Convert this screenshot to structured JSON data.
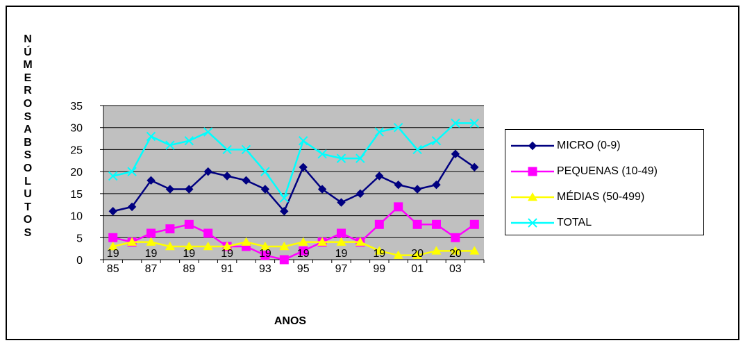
{
  "chart_data": {
    "type": "line",
    "ylabel": "NÚMEROS ABSOLUTOS",
    "xlabel": "ANOS",
    "ylim": [
      0,
      35
    ],
    "y_ticks": [
      0,
      5,
      10,
      15,
      20,
      25,
      30,
      35
    ],
    "grid": true,
    "legend_position": "right",
    "plot_background": "#c0c0c0",
    "categories": [
      "1985",
      "1986",
      "1987",
      "1988",
      "1989",
      "1990",
      "1991",
      "1992",
      "1993",
      "1994",
      "1995",
      "1996",
      "1997",
      "1998",
      "1999",
      "2000",
      "2001",
      "2002",
      "2003",
      "2004"
    ],
    "x_tick_labels": [
      {
        "top": "19",
        "bottom": "85"
      },
      {
        "top": "19",
        "bottom": "87"
      },
      {
        "top": "19",
        "bottom": "89"
      },
      {
        "top": "19",
        "bottom": "91"
      },
      {
        "top": "19",
        "bottom": "93"
      },
      {
        "top": "19",
        "bottom": "95"
      },
      {
        "top": "19",
        "bottom": "97"
      },
      {
        "top": "19",
        "bottom": "99"
      },
      {
        "top": "20",
        "bottom": "01"
      },
      {
        "top": "20",
        "bottom": "03"
      }
    ],
    "series": [
      {
        "name": "MICRO (0-9)",
        "color": "#000080",
        "marker": "diamond",
        "values": [
          11,
          12,
          18,
          16,
          16,
          20,
          19,
          18,
          16,
          11,
          21,
          16,
          13,
          15,
          19,
          17,
          16,
          17,
          24,
          21
        ]
      },
      {
        "name": "PEQUENAS (10-49)",
        "color": "#ff00ff",
        "marker": "square",
        "values": [
          5,
          4,
          6,
          7,
          8,
          6,
          3,
          3,
          1,
          0,
          2,
          4,
          6,
          4,
          8,
          12,
          8,
          8,
          5,
          8
        ]
      },
      {
        "name": "MÉDIAS (50-499)",
        "color": "#ffff00",
        "marker": "triangle",
        "values": [
          3,
          4,
          4,
          3,
          3,
          3,
          3,
          4,
          3,
          3,
          4,
          4,
          4,
          4,
          2,
          1,
          1,
          2,
          2,
          2
        ]
      },
      {
        "name": "TOTAL",
        "color": "#00ffff",
        "marker": "x",
        "values": [
          19,
          20,
          28,
          26,
          27,
          29,
          25,
          25,
          20,
          14,
          27,
          24,
          23,
          23,
          29,
          30,
          25,
          27,
          31,
          31
        ]
      }
    ]
  }
}
